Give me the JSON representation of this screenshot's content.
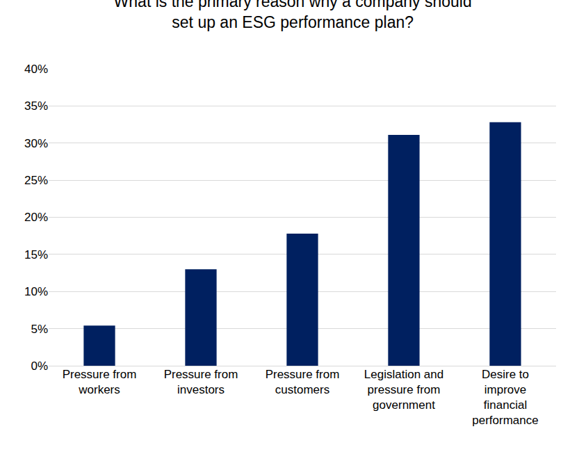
{
  "chart_data": {
    "type": "bar",
    "title": "What is the primary reason why a company should set up an ESG performance plan?",
    "categories": [
      "Pressure from workers",
      "Pressure from investors",
      "Pressure from customers",
      "Legislation and pressure from government",
      "Desire to improve financial performance"
    ],
    "values": [
      5.4,
      13.0,
      17.8,
      31.1,
      32.8
    ],
    "color": "#002060",
    "ylim": [
      0,
      40
    ],
    "yticks": [
      {
        "value": 0,
        "label": "0%"
      },
      {
        "value": 5,
        "label": "5%"
      },
      {
        "value": 10,
        "label": "10%"
      },
      {
        "value": 15,
        "label": "15%"
      },
      {
        "value": 20,
        "label": "20%"
      },
      {
        "value": 25,
        "label": "25%"
      },
      {
        "value": 30,
        "label": "30%"
      },
      {
        "value": 35,
        "label": "35%"
      },
      {
        "value": 40,
        "label": "40%"
      }
    ],
    "grid": true
  }
}
